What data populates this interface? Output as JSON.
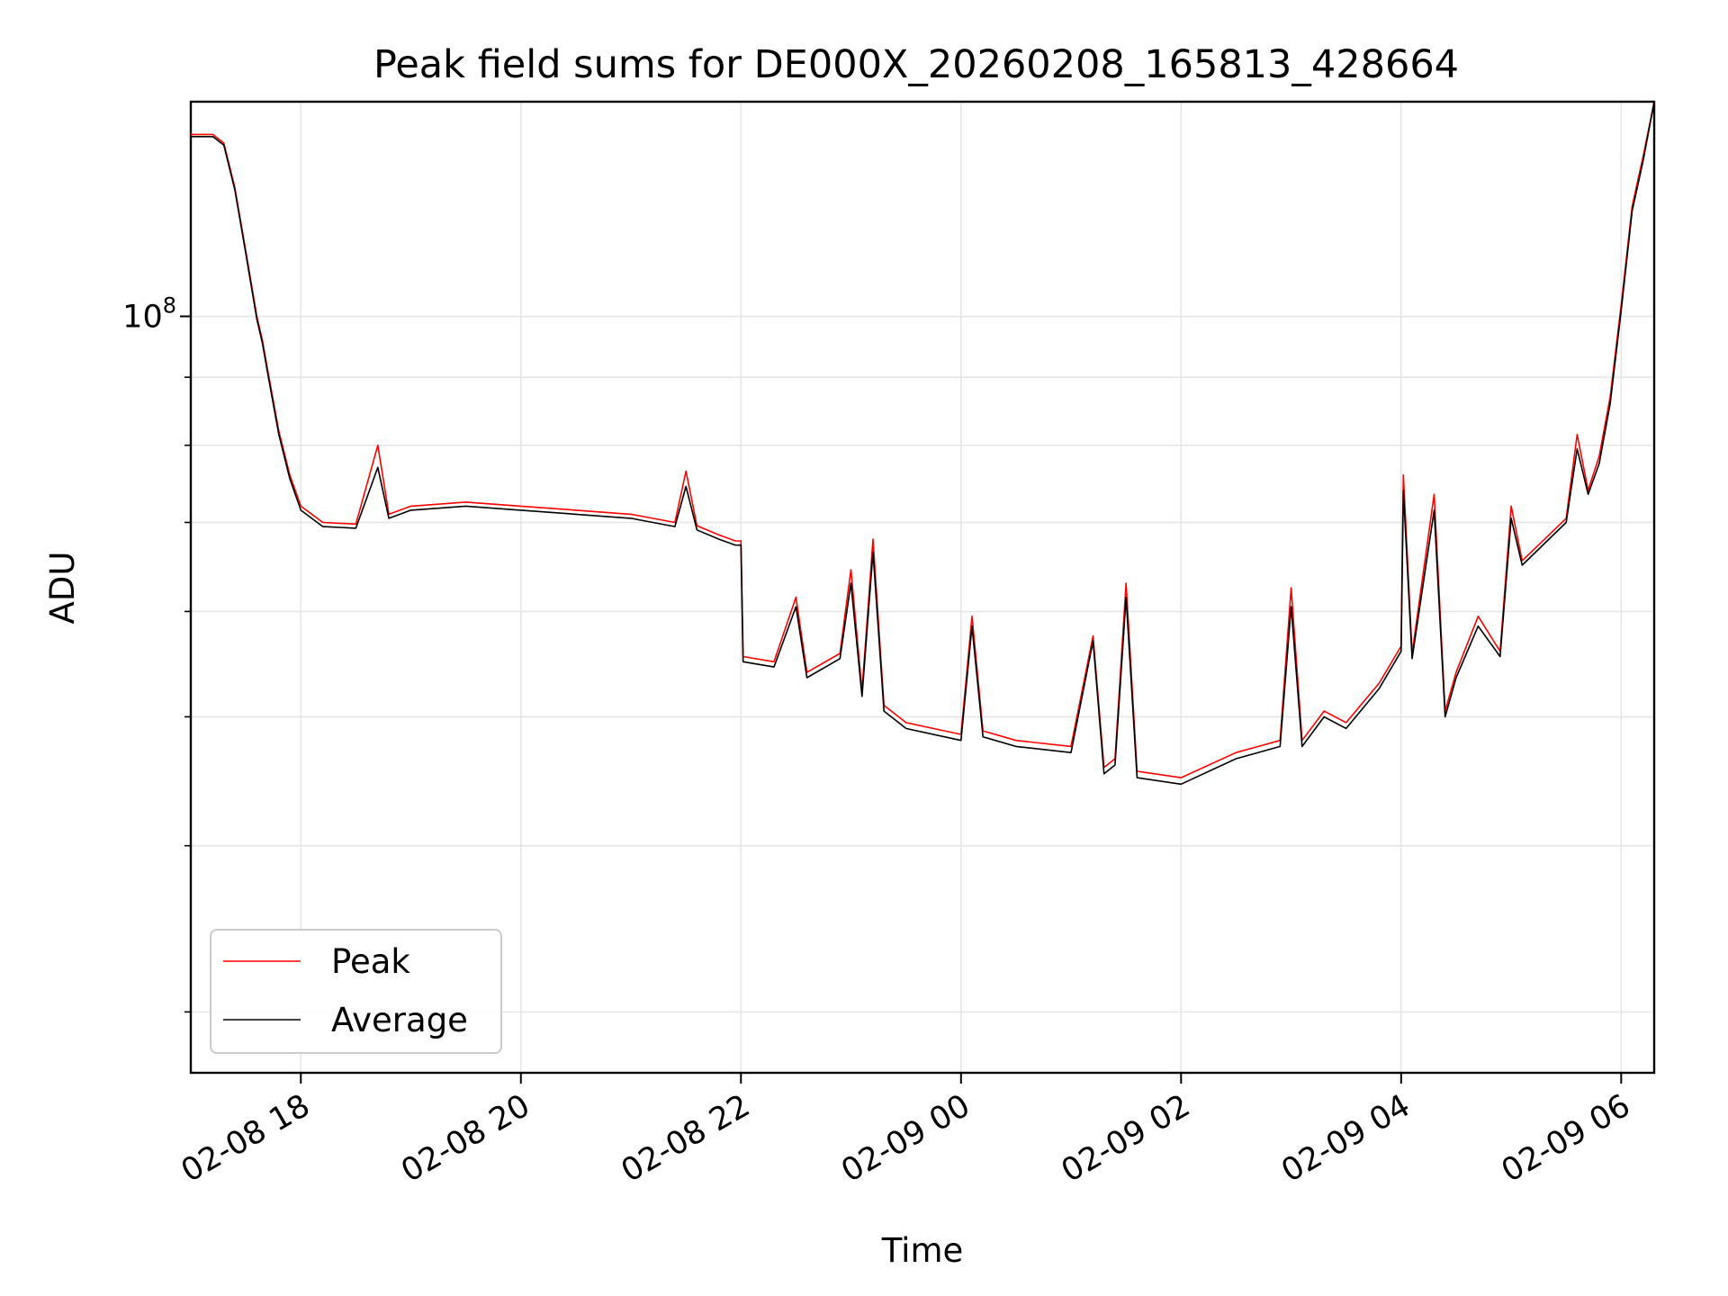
{
  "chart_data": {
    "type": "line",
    "title": "Peak field sums for DE000X_20260208_165813_428664",
    "xlabel": "Time",
    "ylabel": "ADU",
    "yscale": "log",
    "ylim": [
      27000000,
      145000000
    ],
    "xlim_hours": [
      -1.0,
      12.3
    ],
    "grid": true,
    "legend_position": "lower-left",
    "colors": {
      "peak": "#ff0000",
      "average": "#000000",
      "grid": "#e6e6e6"
    },
    "x_ticks": [
      {
        "hours": 0,
        "label": "02-08 18"
      },
      {
        "hours": 2,
        "label": "02-08 20"
      },
      {
        "hours": 4,
        "label": "02-08 22"
      },
      {
        "hours": 6,
        "label": "02-09 00"
      },
      {
        "hours": 8,
        "label": "02-09 02"
      },
      {
        "hours": 10,
        "label": "02-09 04"
      },
      {
        "hours": 12,
        "label": "02-09 06"
      }
    ],
    "y_major_tick": {
      "value": 100000000,
      "label_base": "10",
      "label_exp": "8"
    },
    "y_minor_ticks": [
      30000000,
      40000000,
      50000000,
      60000000,
      70000000,
      80000000,
      90000000,
      200000000
    ],
    "time_unit": "hours since 02-08 18:00",
    "series": [
      {
        "name": "Peak",
        "points": [
          [
            -1.0,
            137000000
          ],
          [
            -0.8,
            137000000
          ],
          [
            -0.7,
            135000000
          ],
          [
            -0.6,
            125000000
          ],
          [
            -0.5,
            112000000
          ],
          [
            -0.4,
            100000000
          ],
          [
            -0.35,
            96000000
          ],
          [
            -0.3,
            91000000
          ],
          [
            -0.2,
            82000000
          ],
          [
            -0.1,
            76000000
          ],
          [
            0.0,
            72000000
          ],
          [
            0.2,
            70000000
          ],
          [
            0.5,
            69800000
          ],
          [
            0.7,
            80000000
          ],
          [
            0.8,
            71000000
          ],
          [
            1.0,
            72000000
          ],
          [
            1.5,
            72500000
          ],
          [
            2.0,
            72000000
          ],
          [
            2.5,
            71500000
          ],
          [
            3.0,
            71000000
          ],
          [
            3.4,
            70000000
          ],
          [
            3.5,
            76500000
          ],
          [
            3.6,
            69600000
          ],
          [
            3.8,
            68500000
          ],
          [
            3.95,
            67800000
          ],
          [
            4.0,
            67800000
          ],
          [
            4.02,
            55500000
          ],
          [
            4.3,
            55000000
          ],
          [
            4.5,
            61500000
          ],
          [
            4.6,
            54000000
          ],
          [
            4.9,
            55800000
          ],
          [
            5.0,
            64500000
          ],
          [
            5.1,
            52300000
          ],
          [
            5.2,
            68000000
          ],
          [
            5.3,
            51000000
          ],
          [
            5.5,
            49500000
          ],
          [
            6.0,
            48500000
          ],
          [
            6.1,
            59500000
          ],
          [
            6.2,
            48800000
          ],
          [
            6.5,
            48000000
          ],
          [
            7.0,
            47500000
          ],
          [
            7.2,
            57500000
          ],
          [
            7.3,
            45800000
          ],
          [
            7.4,
            46500000
          ],
          [
            7.5,
            63000000
          ],
          [
            7.6,
            45500000
          ],
          [
            8.0,
            45000000
          ],
          [
            8.5,
            47000000
          ],
          [
            8.9,
            48000000
          ],
          [
            9.0,
            62500000
          ],
          [
            9.1,
            48000000
          ],
          [
            9.3,
            50500000
          ],
          [
            9.5,
            49500000
          ],
          [
            9.8,
            53000000
          ],
          [
            10.0,
            56500000
          ],
          [
            10.02,
            76000000
          ],
          [
            10.1,
            55800000
          ],
          [
            10.3,
            73500000
          ],
          [
            10.4,
            50500000
          ],
          [
            10.5,
            54000000
          ],
          [
            10.7,
            59500000
          ],
          [
            10.9,
            56000000
          ],
          [
            11.0,
            72000000
          ],
          [
            11.1,
            65500000
          ],
          [
            11.5,
            70500000
          ],
          [
            11.6,
            81500000
          ],
          [
            11.7,
            74000000
          ],
          [
            11.8,
            78500000
          ],
          [
            11.9,
            87000000
          ],
          [
            12.0,
            102000000
          ],
          [
            12.1,
            121000000
          ],
          [
            12.2,
            132000000
          ],
          [
            12.3,
            145000000
          ]
        ]
      },
      {
        "name": "Average",
        "points": [
          [
            -1.0,
            136500000
          ],
          [
            -0.8,
            136500000
          ],
          [
            -0.7,
            134500000
          ],
          [
            -0.6,
            124500000
          ],
          [
            -0.5,
            111500000
          ],
          [
            -0.4,
            99500000
          ],
          [
            -0.35,
            95500000
          ],
          [
            -0.3,
            90500000
          ],
          [
            -0.2,
            81500000
          ],
          [
            -0.1,
            75500000
          ],
          [
            0.0,
            71500000
          ],
          [
            0.2,
            69500000
          ],
          [
            0.5,
            69300000
          ],
          [
            0.7,
            77000000
          ],
          [
            0.8,
            70500000
          ],
          [
            1.0,
            71500000
          ],
          [
            1.5,
            72000000
          ],
          [
            2.0,
            71500000
          ],
          [
            2.5,
            71000000
          ],
          [
            3.0,
            70500000
          ],
          [
            3.4,
            69500000
          ],
          [
            3.5,
            74500000
          ],
          [
            3.6,
            69100000
          ],
          [
            3.8,
            68000000
          ],
          [
            3.95,
            67300000
          ],
          [
            4.0,
            67300000
          ],
          [
            4.02,
            55000000
          ],
          [
            4.3,
            54500000
          ],
          [
            4.5,
            60500000
          ],
          [
            4.6,
            53500000
          ],
          [
            4.9,
            55300000
          ],
          [
            5.0,
            63000000
          ],
          [
            5.1,
            51800000
          ],
          [
            5.2,
            66500000
          ],
          [
            5.3,
            50500000
          ],
          [
            5.5,
            49000000
          ],
          [
            6.0,
            48000000
          ],
          [
            6.1,
            58500000
          ],
          [
            6.2,
            48300000
          ],
          [
            6.5,
            47500000
          ],
          [
            7.0,
            47000000
          ],
          [
            7.2,
            57000000
          ],
          [
            7.3,
            45300000
          ],
          [
            7.4,
            46000000
          ],
          [
            7.5,
            61500000
          ],
          [
            7.6,
            45000000
          ],
          [
            8.0,
            44500000
          ],
          [
            8.5,
            46500000
          ],
          [
            8.9,
            47500000
          ],
          [
            9.0,
            60500000
          ],
          [
            9.1,
            47500000
          ],
          [
            9.3,
            50000000
          ],
          [
            9.5,
            49000000
          ],
          [
            9.8,
            52500000
          ],
          [
            10.0,
            56000000
          ],
          [
            10.02,
            74000000
          ],
          [
            10.1,
            55300000
          ],
          [
            10.3,
            71500000
          ],
          [
            10.4,
            50000000
          ],
          [
            10.5,
            53500000
          ],
          [
            10.7,
            58500000
          ],
          [
            10.9,
            55500000
          ],
          [
            11.0,
            70500000
          ],
          [
            11.1,
            65000000
          ],
          [
            11.5,
            70000000
          ],
          [
            11.6,
            79500000
          ],
          [
            11.7,
            73500000
          ],
          [
            11.8,
            77500000
          ],
          [
            11.9,
            86000000
          ],
          [
            12.0,
            101000000
          ],
          [
            12.1,
            120000000
          ],
          [
            12.2,
            131000000
          ],
          [
            12.3,
            145000000
          ]
        ]
      }
    ]
  }
}
